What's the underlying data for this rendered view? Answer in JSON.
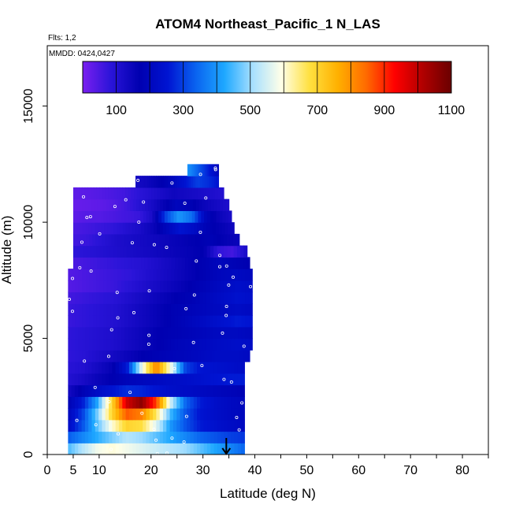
{
  "chart_data": {
    "type": "heatmap",
    "title": "ATOM4 Northeast_Pacific_1 N_LAS",
    "flights_label": "Flts: 1,2",
    "dates_label": "MMDD: 0424,0427",
    "xlabel": "Latitude (deg N)",
    "ylabel": "Altitude (m)",
    "xlim": [
      0,
      85
    ],
    "ylim": [
      0,
      17600
    ],
    "x_ticks": [
      0,
      5,
      10,
      20,
      30,
      40,
      50,
      60,
      70,
      80
    ],
    "y_ticks": [
      0,
      5000,
      10000,
      15000
    ],
    "colorbar": {
      "range": [
        0,
        1100
      ],
      "tick_values": [
        100,
        300,
        500,
        700,
        900,
        1100
      ],
      "colors": [
        "#7a1ff0",
        "#2a14d8",
        "#0000b0",
        "#0014d2",
        "#0a64f0",
        "#1ea8ff",
        "#a8e0ff",
        "#ffffe8",
        "#ffe040",
        "#ffb000",
        "#ff6a00",
        "#ff0000",
        "#b00000",
        "#6a0000"
      ]
    },
    "marker_latitude": 34.5,
    "bin_height_m": 500,
    "rows": [
      {
        "alt": 250,
        "lat_min": 4,
        "lat_max": 38,
        "values": [
          450,
          520,
          580,
          600,
          580,
          560,
          540,
          520,
          500,
          460,
          420,
          380,
          340
        ]
      },
      {
        "alt": 750,
        "lat_min": 4,
        "lat_max": 38,
        "values": [
          330,
          380,
          430,
          480,
          520,
          500,
          460,
          420,
          380,
          340,
          320,
          300,
          290
        ]
      },
      {
        "alt": 1250,
        "lat_min": 4,
        "lat_max": 38,
        "values": [
          220,
          320,
          460,
          600,
          700,
          680,
          560,
          400,
          320,
          260,
          240,
          220,
          210
        ]
      },
      {
        "alt": 1750,
        "lat_min": 4,
        "lat_max": 38,
        "values": [
          200,
          300,
          480,
          700,
          860,
          820,
          660,
          440,
          320,
          250,
          230,
          210,
          200
        ]
      },
      {
        "alt": 2250,
        "lat_min": 4,
        "lat_max": 38,
        "values": [
          180,
          260,
          420,
          700,
          980,
          1060,
          880,
          540,
          340,
          260,
          230,
          210,
          200
        ]
      },
      {
        "alt": 2750,
        "lat_min": 4,
        "lat_max": 38,
        "values": [
          130,
          180,
          220,
          250,
          280,
          270,
          250,
          230,
          220,
          210,
          200,
          190,
          180
        ]
      },
      {
        "alt": 3250,
        "lat_min": 4,
        "lat_max": 38,
        "values": [
          100,
          120,
          150,
          170,
          190,
          200,
          210,
          220,
          230,
          240,
          250,
          260,
          260
        ]
      },
      {
        "alt": 3750,
        "lat_min": 4,
        "lat_max": 38,
        "values": [
          90,
          100,
          130,
          160,
          250,
          560,
          820,
          580,
          300,
          250,
          240,
          230,
          220
        ]
      },
      {
        "alt": 4250,
        "lat_min": 4,
        "lat_max": 39,
        "values": [
          80,
          90,
          110,
          130,
          150,
          170,
          180,
          190,
          200,
          210,
          220,
          220,
          210
        ]
      },
      {
        "alt": 4750,
        "lat_min": 4,
        "lat_max": 39.5,
        "values": [
          80,
          90,
          100,
          110,
          130,
          150,
          170,
          190,
          200,
          210,
          220,
          230,
          220
        ]
      },
      {
        "alt": 5250,
        "lat_min": 4,
        "lat_max": 39.5,
        "values": [
          80,
          90,
          100,
          110,
          130,
          150,
          170,
          180,
          190,
          200,
          210,
          210,
          200
        ]
      },
      {
        "alt": 5750,
        "lat_min": 4,
        "lat_max": 39.5,
        "values": [
          70,
          80,
          90,
          100,
          120,
          140,
          160,
          180,
          200,
          220,
          240,
          260,
          250
        ]
      },
      {
        "alt": 6250,
        "lat_min": 4,
        "lat_max": 39.5,
        "values": [
          70,
          80,
          90,
          100,
          120,
          140,
          160,
          180,
          190,
          200,
          210,
          220,
          210
        ]
      },
      {
        "alt": 6750,
        "lat_min": 4,
        "lat_max": 39.5,
        "values": [
          60,
          70,
          80,
          90,
          110,
          130,
          150,
          170,
          180,
          200,
          220,
          240,
          230
        ]
      },
      {
        "alt": 7250,
        "lat_min": 4,
        "lat_max": 39.5,
        "values": [
          40,
          50,
          60,
          70,
          90,
          110,
          130,
          150,
          170,
          190,
          210,
          230,
          220
        ]
      },
      {
        "alt": 7750,
        "lat_min": 4,
        "lat_max": 39.5,
        "values": [
          40,
          50,
          60,
          70,
          80,
          100,
          120,
          140,
          160,
          180,
          200,
          210,
          200
        ]
      },
      {
        "alt": 8250,
        "lat_min": 5,
        "lat_max": 39,
        "values": [
          50,
          60,
          70,
          80,
          90,
          100,
          120,
          140,
          160,
          180,
          200,
          180,
          170
        ]
      },
      {
        "alt": 8750,
        "lat_min": 5,
        "lat_max": 38.5,
        "values": [
          80,
          90,
          100,
          110,
          120,
          130,
          140,
          150,
          160,
          170,
          80,
          60,
          120
        ]
      },
      {
        "alt": 9250,
        "lat_min": 5,
        "lat_max": 37,
        "values": [
          60,
          70,
          90,
          110,
          120,
          130,
          140,
          150,
          160,
          170,
          180,
          160,
          150
        ]
      },
      {
        "alt": 9750,
        "lat_min": 5,
        "lat_max": 36,
        "values": [
          50,
          60,
          70,
          80,
          100,
          120,
          150,
          200,
          250,
          220,
          180,
          160,
          140
        ]
      },
      {
        "alt": 10250,
        "lat_min": 5,
        "lat_max": 35.5,
        "values": [
          30,
          40,
          40,
          50,
          60,
          70,
          120,
          300,
          400,
          350,
          200,
          150,
          120
        ]
      },
      {
        "alt": 10750,
        "lat_min": 5,
        "lat_max": 35,
        "values": [
          20,
          25,
          30,
          40,
          60,
          90,
          120,
          160,
          200,
          180,
          150,
          130,
          110
        ]
      },
      {
        "alt": 11250,
        "lat_min": 5,
        "lat_max": 34,
        "values": [
          30,
          35,
          40,
          50,
          60,
          80,
          100,
          120,
          140,
          130,
          120,
          110,
          100
        ]
      },
      {
        "alt": 11750,
        "lat_min": 17,
        "lat_max": 33,
        "values": [
          130,
          140,
          160,
          180,
          220,
          260,
          300,
          280,
          250
        ]
      },
      {
        "alt": 12250,
        "lat_min": 27,
        "lat_max": 33,
        "values": [
          400,
          350,
          300,
          250,
          200
        ]
      }
    ]
  }
}
